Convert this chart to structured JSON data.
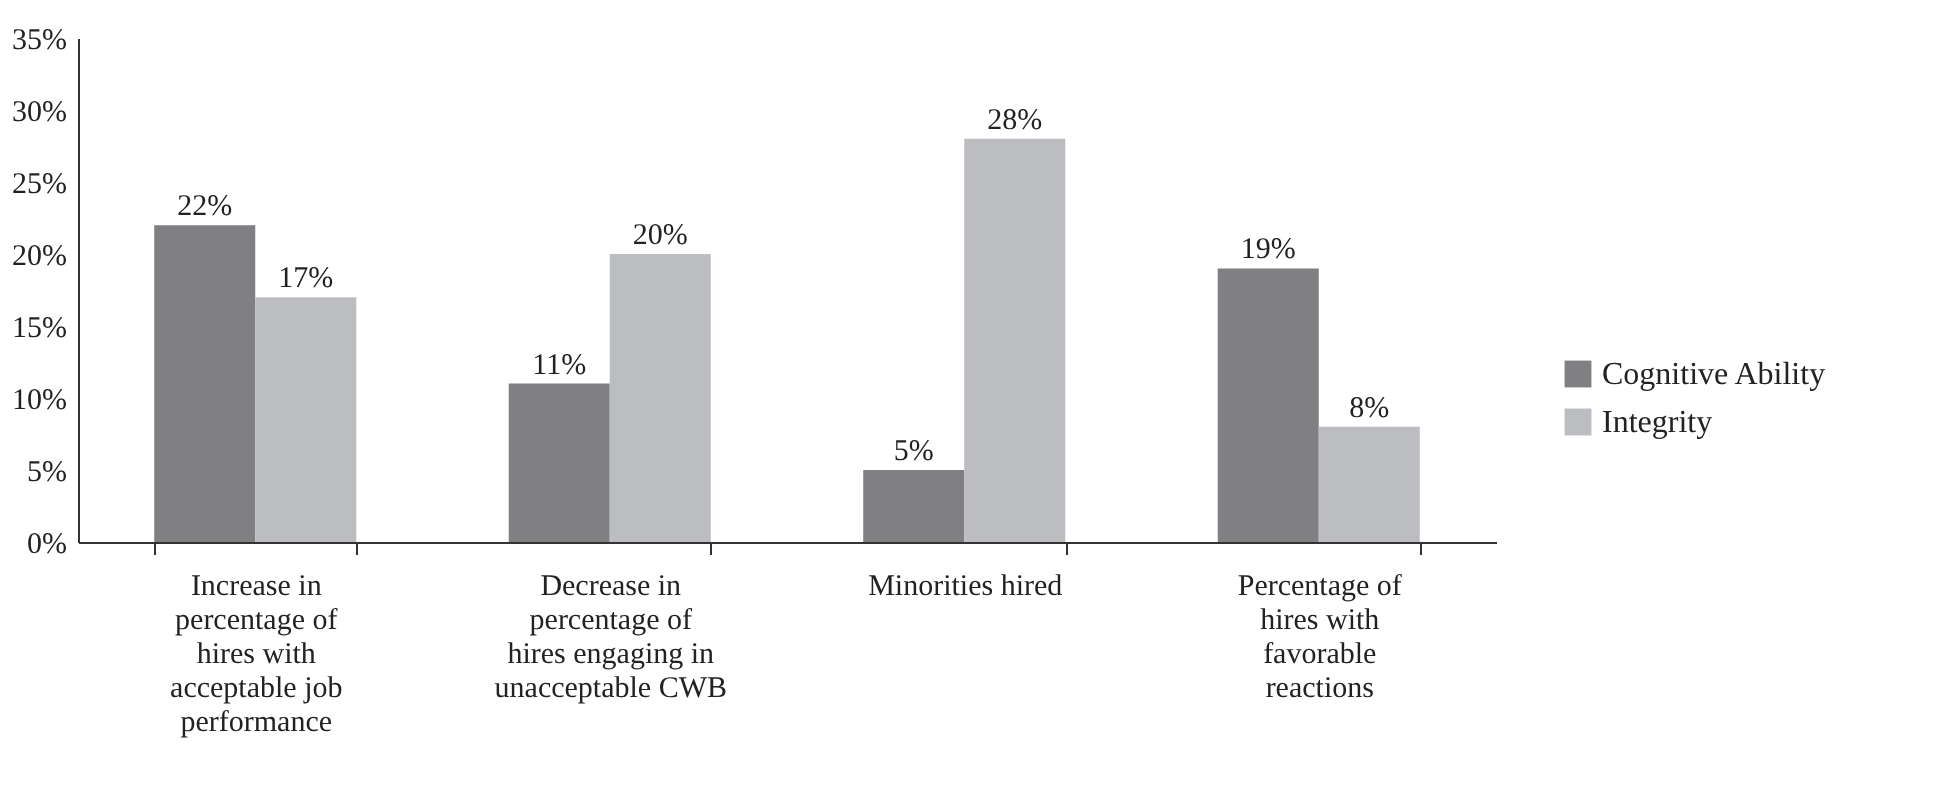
{
  "chart_data": {
    "type": "bar",
    "categories": [
      "Increase in\npercentage of\nhires with\nacceptable job\nperformance",
      "Decrease in\npercentage of\nhires engaging in\nunacceptable CWB",
      "Minorities hired",
      "Percentage of\nhires with\nfavorable\nreactions"
    ],
    "series": [
      {
        "name": "Cognitive Ability",
        "color": "#808083",
        "values": [
          22,
          11,
          5,
          19
        ],
        "value_labels": [
          "22%",
          "11%",
          "5%",
          "19%"
        ]
      },
      {
        "name": "Integrity",
        "color": "#bcbdc0",
        "values": [
          17,
          20,
          28,
          8
        ],
        "value_labels": [
          "17%",
          "20%",
          "28%",
          "8%"
        ]
      }
    ],
    "ylim": [
      0,
      35
    ],
    "yticks": [
      {
        "value": 0,
        "label": "0%"
      },
      {
        "value": 5,
        "label": "5%"
      },
      {
        "value": 10,
        "label": "10%"
      },
      {
        "value": 15,
        "label": "15%"
      },
      {
        "value": 20,
        "label": "20%"
      },
      {
        "value": 25,
        "label": "25%"
      },
      {
        "value": 30,
        "label": "30%"
      },
      {
        "value": 35,
        "label": "35%"
      }
    ],
    "grid": false,
    "legend": "right"
  }
}
